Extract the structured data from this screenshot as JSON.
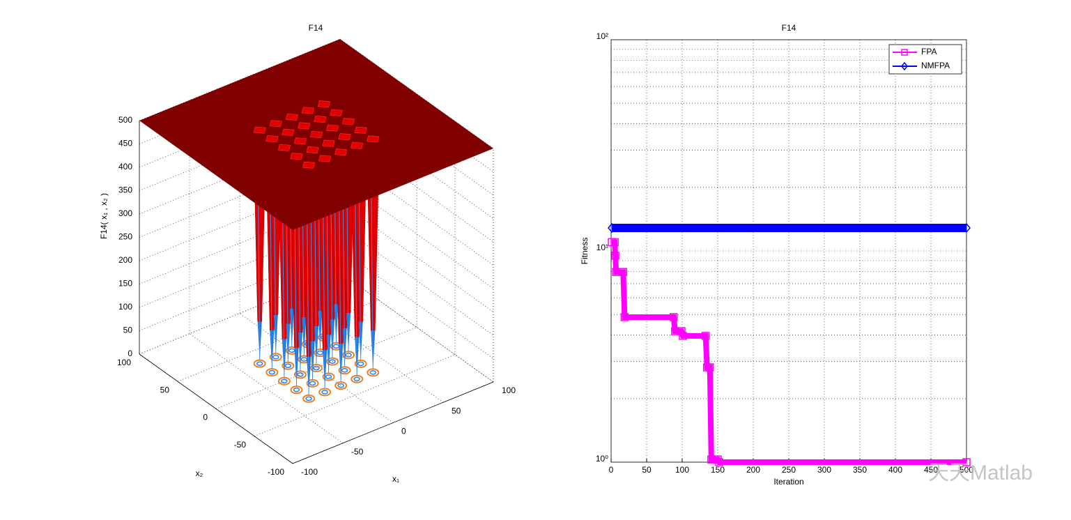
{
  "chart_data": [
    {
      "type": "surface",
      "title": "F14",
      "xlabel": "x₁",
      "ylabel": "x₂",
      "zlabel": "F14( x₁ , x₂ )",
      "xlim": [
        -100,
        100
      ],
      "ylim": [
        -100,
        100
      ],
      "zlim": [
        0,
        500
      ],
      "xticks": [
        -100,
        -50,
        0,
        50,
        100
      ],
      "yticks": [
        -100,
        -50,
        0,
        50,
        100
      ],
      "zticks": [
        0,
        50,
        100,
        150,
        200,
        250,
        300,
        350,
        400,
        450,
        500
      ],
      "color": "#800000",
      "grid": true
    },
    {
      "type": "line",
      "title": "F14",
      "xlabel": "Iteration",
      "ylabel": "Fitness",
      "log_y": true,
      "grid": true,
      "legend": "northeast",
      "xlim": [
        0,
        500
      ],
      "xticks": [
        0,
        50,
        100,
        150,
        200,
        250,
        300,
        350,
        400,
        450,
        500
      ],
      "ylim": [
        1,
        100
      ],
      "yticks": [
        {
          "value": 1,
          "label": "10⁰"
        },
        {
          "value": 10,
          "label": "10¹"
        },
        {
          "value": 100,
          "label": "10²"
        }
      ],
      "series": [
        {
          "name": "FPA",
          "color": "#ff00ff",
          "marker": "square",
          "x": [
            1,
            5,
            6,
            7,
            17,
            19,
            88,
            90,
            99,
            101,
            133,
            135,
            139,
            141,
            150,
            152,
            500
          ],
          "values": [
            11.0,
            11.0,
            9.5,
            7.95,
            7.95,
            4.86,
            4.86,
            4.17,
            4.17,
            3.96,
            3.96,
            2.81,
            2.81,
            1.03,
            1.03,
            1.0,
            1.0
          ]
        },
        {
          "name": "NMFPA",
          "color": "#0000ff",
          "marker": "diamond",
          "x": [
            1,
            500
          ],
          "values": [
            12.85,
            12.85
          ]
        }
      ]
    }
  ],
  "watermark": "天天Matlab"
}
